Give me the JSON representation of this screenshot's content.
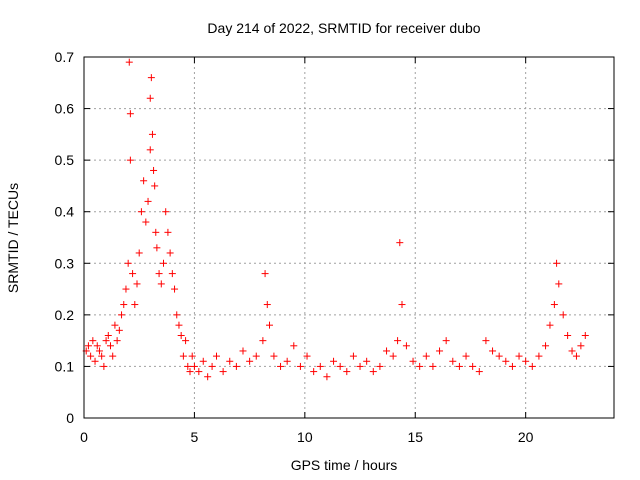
{
  "chart_data": {
    "type": "scatter",
    "title": "Day 214 of 2022, SRMTID for receiver dubo",
    "xlabel": "GPS time / hours",
    "ylabel": "SRMTID / TECUs",
    "xlim": [
      0,
      24
    ],
    "ylim": [
      0,
      0.7
    ],
    "xticks": [
      0,
      5,
      10,
      15,
      20
    ],
    "yticks": [
      0,
      0.1,
      0.2,
      0.3,
      0.4,
      0.5,
      0.6,
      0.7
    ],
    "grid": true,
    "marker": "+",
    "series": [
      {
        "name": "SRMTID",
        "color": "#ff0000",
        "x": [
          0.1,
          0.2,
          0.3,
          0.4,
          0.5,
          0.6,
          0.7,
          0.8,
          0.9,
          1.0,
          1.1,
          1.2,
          1.3,
          1.4,
          1.5,
          1.6,
          1.7,
          1.8,
          1.9,
          2.0,
          2.05,
          2.1,
          2.1,
          2.2,
          2.3,
          2.4,
          2.5,
          2.6,
          2.7,
          2.8,
          2.9,
          3.0,
          3.0,
          3.05,
          3.1,
          3.15,
          3.2,
          3.25,
          3.3,
          3.4,
          3.5,
          3.6,
          3.7,
          3.8,
          3.9,
          4.0,
          4.1,
          4.2,
          4.3,
          4.4,
          4.5,
          4.6,
          4.7,
          4.8,
          4.9,
          5.0,
          5.2,
          5.4,
          5.6,
          5.8,
          6.0,
          6.3,
          6.6,
          6.9,
          7.2,
          7.5,
          7.8,
          8.1,
          8.2,
          8.3,
          8.4,
          8.6,
          8.9,
          9.2,
          9.5,
          9.8,
          10.1,
          10.4,
          10.7,
          11.0,
          11.3,
          11.6,
          11.9,
          12.2,
          12.5,
          12.8,
          13.1,
          13.4,
          13.7,
          14.0,
          14.2,
          14.3,
          14.4,
          14.6,
          14.9,
          15.2,
          15.5,
          15.8,
          16.1,
          16.4,
          16.7,
          17.0,
          17.3,
          17.6,
          17.9,
          18.2,
          18.5,
          18.8,
          19.1,
          19.4,
          19.7,
          20.0,
          20.3,
          20.6,
          20.9,
          21.1,
          21.3,
          21.4,
          21.5,
          21.7,
          21.9,
          22.1,
          22.3,
          22.5,
          22.7
        ],
        "y": [
          0.13,
          0.14,
          0.12,
          0.15,
          0.11,
          0.14,
          0.13,
          0.12,
          0.1,
          0.15,
          0.16,
          0.14,
          0.12,
          0.18,
          0.15,
          0.17,
          0.2,
          0.22,
          0.25,
          0.3,
          0.69,
          0.59,
          0.5,
          0.28,
          0.22,
          0.26,
          0.32,
          0.4,
          0.46,
          0.38,
          0.42,
          0.52,
          0.62,
          0.66,
          0.55,
          0.48,
          0.45,
          0.36,
          0.33,
          0.28,
          0.26,
          0.3,
          0.4,
          0.36,
          0.32,
          0.28,
          0.25,
          0.2,
          0.18,
          0.16,
          0.12,
          0.15,
          0.1,
          0.09,
          0.12,
          0.1,
          0.09,
          0.11,
          0.08,
          0.1,
          0.12,
          0.09,
          0.11,
          0.1,
          0.13,
          0.11,
          0.12,
          0.15,
          0.28,
          0.22,
          0.18,
          0.12,
          0.1,
          0.11,
          0.14,
          0.1,
          0.12,
          0.09,
          0.1,
          0.08,
          0.11,
          0.1,
          0.09,
          0.12,
          0.1,
          0.11,
          0.09,
          0.1,
          0.13,
          0.12,
          0.15,
          0.34,
          0.22,
          0.14,
          0.11,
          0.1,
          0.12,
          0.1,
          0.13,
          0.15,
          0.11,
          0.1,
          0.12,
          0.1,
          0.09,
          0.15,
          0.13,
          0.12,
          0.11,
          0.1,
          0.12,
          0.11,
          0.1,
          0.12,
          0.14,
          0.18,
          0.22,
          0.3,
          0.26,
          0.2,
          0.16,
          0.13,
          0.12,
          0.14,
          0.16
        ]
      }
    ]
  }
}
